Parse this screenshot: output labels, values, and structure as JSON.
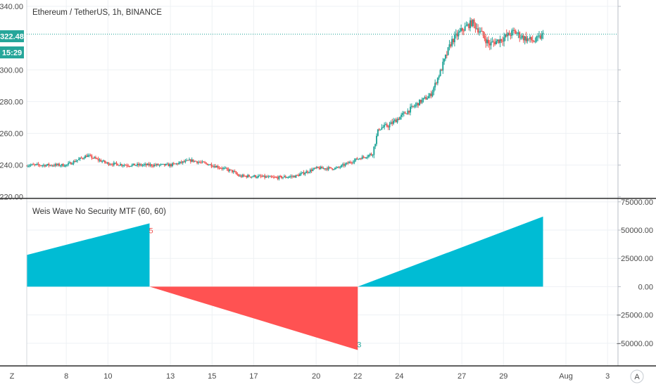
{
  "main_legend": "Ethereum / TetherUS, 1h, BINANCE",
  "indicator_legend": "Weis Wave No Security MTF (60, 60)",
  "price_badge": "322.48",
  "countdown_badge": "15:29",
  "price_axis": {
    "ticks": [
      220,
      240,
      260,
      280,
      300,
      340
    ],
    "tick_labels": [
      "220.00",
      "240.00",
      "260.00",
      "280.00",
      "300.00",
      "340.00"
    ],
    "current_price": 322.48
  },
  "volume_axis": {
    "ticks": [
      75000,
      50000,
      25000,
      0,
      -25000,
      -50000
    ],
    "tick_labels": [
      "75000.00",
      "50000.00",
      "25000.00",
      "0.00",
      "−25000.00",
      "−50000.00"
    ]
  },
  "time_axis": {
    "ticks": [
      {
        "day": 8,
        "label": "8"
      },
      {
        "day": 10,
        "label": "10"
      },
      {
        "day": 13,
        "label": "13"
      },
      {
        "day": 15,
        "label": "15"
      },
      {
        "day": 17,
        "label": "17"
      },
      {
        "day": 20,
        "label": "20"
      },
      {
        "day": 22,
        "label": "22"
      },
      {
        "day": 24,
        "label": "24"
      },
      {
        "day": 27,
        "label": "27"
      },
      {
        "day": 29,
        "label": "29"
      },
      {
        "day": 32,
        "label": "Aug"
      },
      {
        "day": 34,
        "label": "3"
      }
    ],
    "left_button": "Z",
    "right_button": "A"
  },
  "wave_labels": [
    {
      "text": "5",
      "color": "#ef5350"
    },
    {
      "text": "3",
      "color": "#26a69a"
    }
  ],
  "colors": {
    "up_candle": "#26a69a",
    "down_candle": "#ef5350",
    "wave_up": "#00bcd4",
    "wave_down": "#ff5252",
    "grid": "#eef1f4",
    "price_line": "#26a69a",
    "badge": "#26a69a"
  },
  "chart_data": [
    {
      "type": "candlestick",
      "series_kind": "ohlc-trend",
      "x_unit": "day of July",
      "xlim": [
        6.1,
        34.5
      ],
      "ylim": [
        219,
        344
      ],
      "trend": [
        {
          "x": 6.1,
          "y": 240
        },
        {
          "x": 8,
          "y": 240
        },
        {
          "x": 9,
          "y": 246
        },
        {
          "x": 10,
          "y": 241
        },
        {
          "x": 11,
          "y": 240
        },
        {
          "x": 12,
          "y": 240
        },
        {
          "x": 13,
          "y": 240
        },
        {
          "x": 14,
          "y": 243
        },
        {
          "x": 15,
          "y": 240
        },
        {
          "x": 16,
          "y": 236
        },
        {
          "x": 16.3,
          "y": 233
        },
        {
          "x": 17,
          "y": 233
        },
        {
          "x": 18,
          "y": 232
        },
        {
          "x": 19,
          "y": 233
        },
        {
          "x": 20,
          "y": 238
        },
        {
          "x": 21,
          "y": 238
        },
        {
          "x": 22,
          "y": 244
        },
        {
          "x": 22.5,
          "y": 246
        },
        {
          "x": 22.7,
          "y": 247
        },
        {
          "x": 23,
          "y": 263
        },
        {
          "x": 23.5,
          "y": 265
        },
        {
          "x": 24,
          "y": 270
        },
        {
          "x": 24.5,
          "y": 275
        },
        {
          "x": 25,
          "y": 280
        },
        {
          "x": 25.5,
          "y": 284
        },
        {
          "x": 26,
          "y": 300
        },
        {
          "x": 26.5,
          "y": 318
        },
        {
          "x": 27,
          "y": 325
        },
        {
          "x": 27.5,
          "y": 330
        },
        {
          "x": 28,
          "y": 322
        },
        {
          "x": 28.3,
          "y": 316
        },
        {
          "x": 29,
          "y": 320
        },
        {
          "x": 29.5,
          "y": 324
        },
        {
          "x": 30,
          "y": 320
        },
        {
          "x": 30.5,
          "y": 318
        },
        {
          "x": 30.9,
          "y": 322
        }
      ]
    },
    {
      "type": "area",
      "title": "",
      "x_unit": "day of July",
      "ylim": [
        -70000,
        78000
      ],
      "waves": [
        {
          "direction": "up",
          "x_start": 6.1,
          "x_end": 12,
          "y_start": 28000,
          "y_end": 56000
        },
        {
          "direction": "down",
          "x_start": 12,
          "x_end": 22,
          "y_start": 0,
          "y_end": -56000
        },
        {
          "direction": "up",
          "x_start": 22,
          "x_end": 30.9,
          "y_start": 0,
          "y_end": 62000
        }
      ]
    }
  ]
}
